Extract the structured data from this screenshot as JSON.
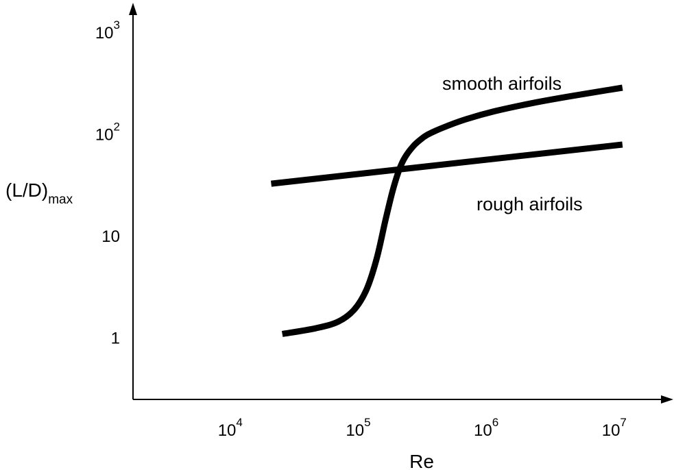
{
  "chart_data": {
    "type": "line",
    "title": "",
    "xlabel": "Re",
    "ylabel": {
      "base": "(L/D)",
      "subscript": "max"
    },
    "x_scale": "log",
    "y_scale": "log",
    "xlim": [
      1500,
      20000000
    ],
    "ylim": [
      0.25,
      1500
    ],
    "x_ticks": [
      {
        "value": 10000,
        "base": "10",
        "exp": "4"
      },
      {
        "value": 100000,
        "base": "10",
        "exp": "5"
      },
      {
        "value": 1000000,
        "base": "10",
        "exp": "6"
      },
      {
        "value": 10000000,
        "base": "10",
        "exp": "7"
      }
    ],
    "y_ticks": [
      {
        "value": 1,
        "base": "1",
        "exp": ""
      },
      {
        "value": 10,
        "base": "10",
        "exp": ""
      },
      {
        "value": 100,
        "base": "10",
        "exp": "2"
      },
      {
        "value": 1000,
        "base": "10",
        "exp": "3"
      }
    ],
    "grid": false,
    "legend": "none",
    "series": [
      {
        "name": "smooth airfoils",
        "color": "#000000",
        "x": [
          22000,
          40000,
          60000,
          80000,
          100000,
          120000,
          140000,
          160000,
          180000,
          200000,
          230000,
          260000,
          300000,
          400000,
          600000,
          1000000,
          2000000,
          4000000,
          10000000
        ],
        "y": [
          1.1,
          1.25,
          1.45,
          1.9,
          3.0,
          6.0,
          14,
          28,
          45,
          60,
          76,
          88,
          100,
          118,
          142,
          170,
          205,
          240,
          290
        ]
      },
      {
        "name": "rough airfoils",
        "color": "#000000",
        "x": [
          18000,
          10000000
        ],
        "y": [
          33,
          80
        ]
      }
    ]
  }
}
